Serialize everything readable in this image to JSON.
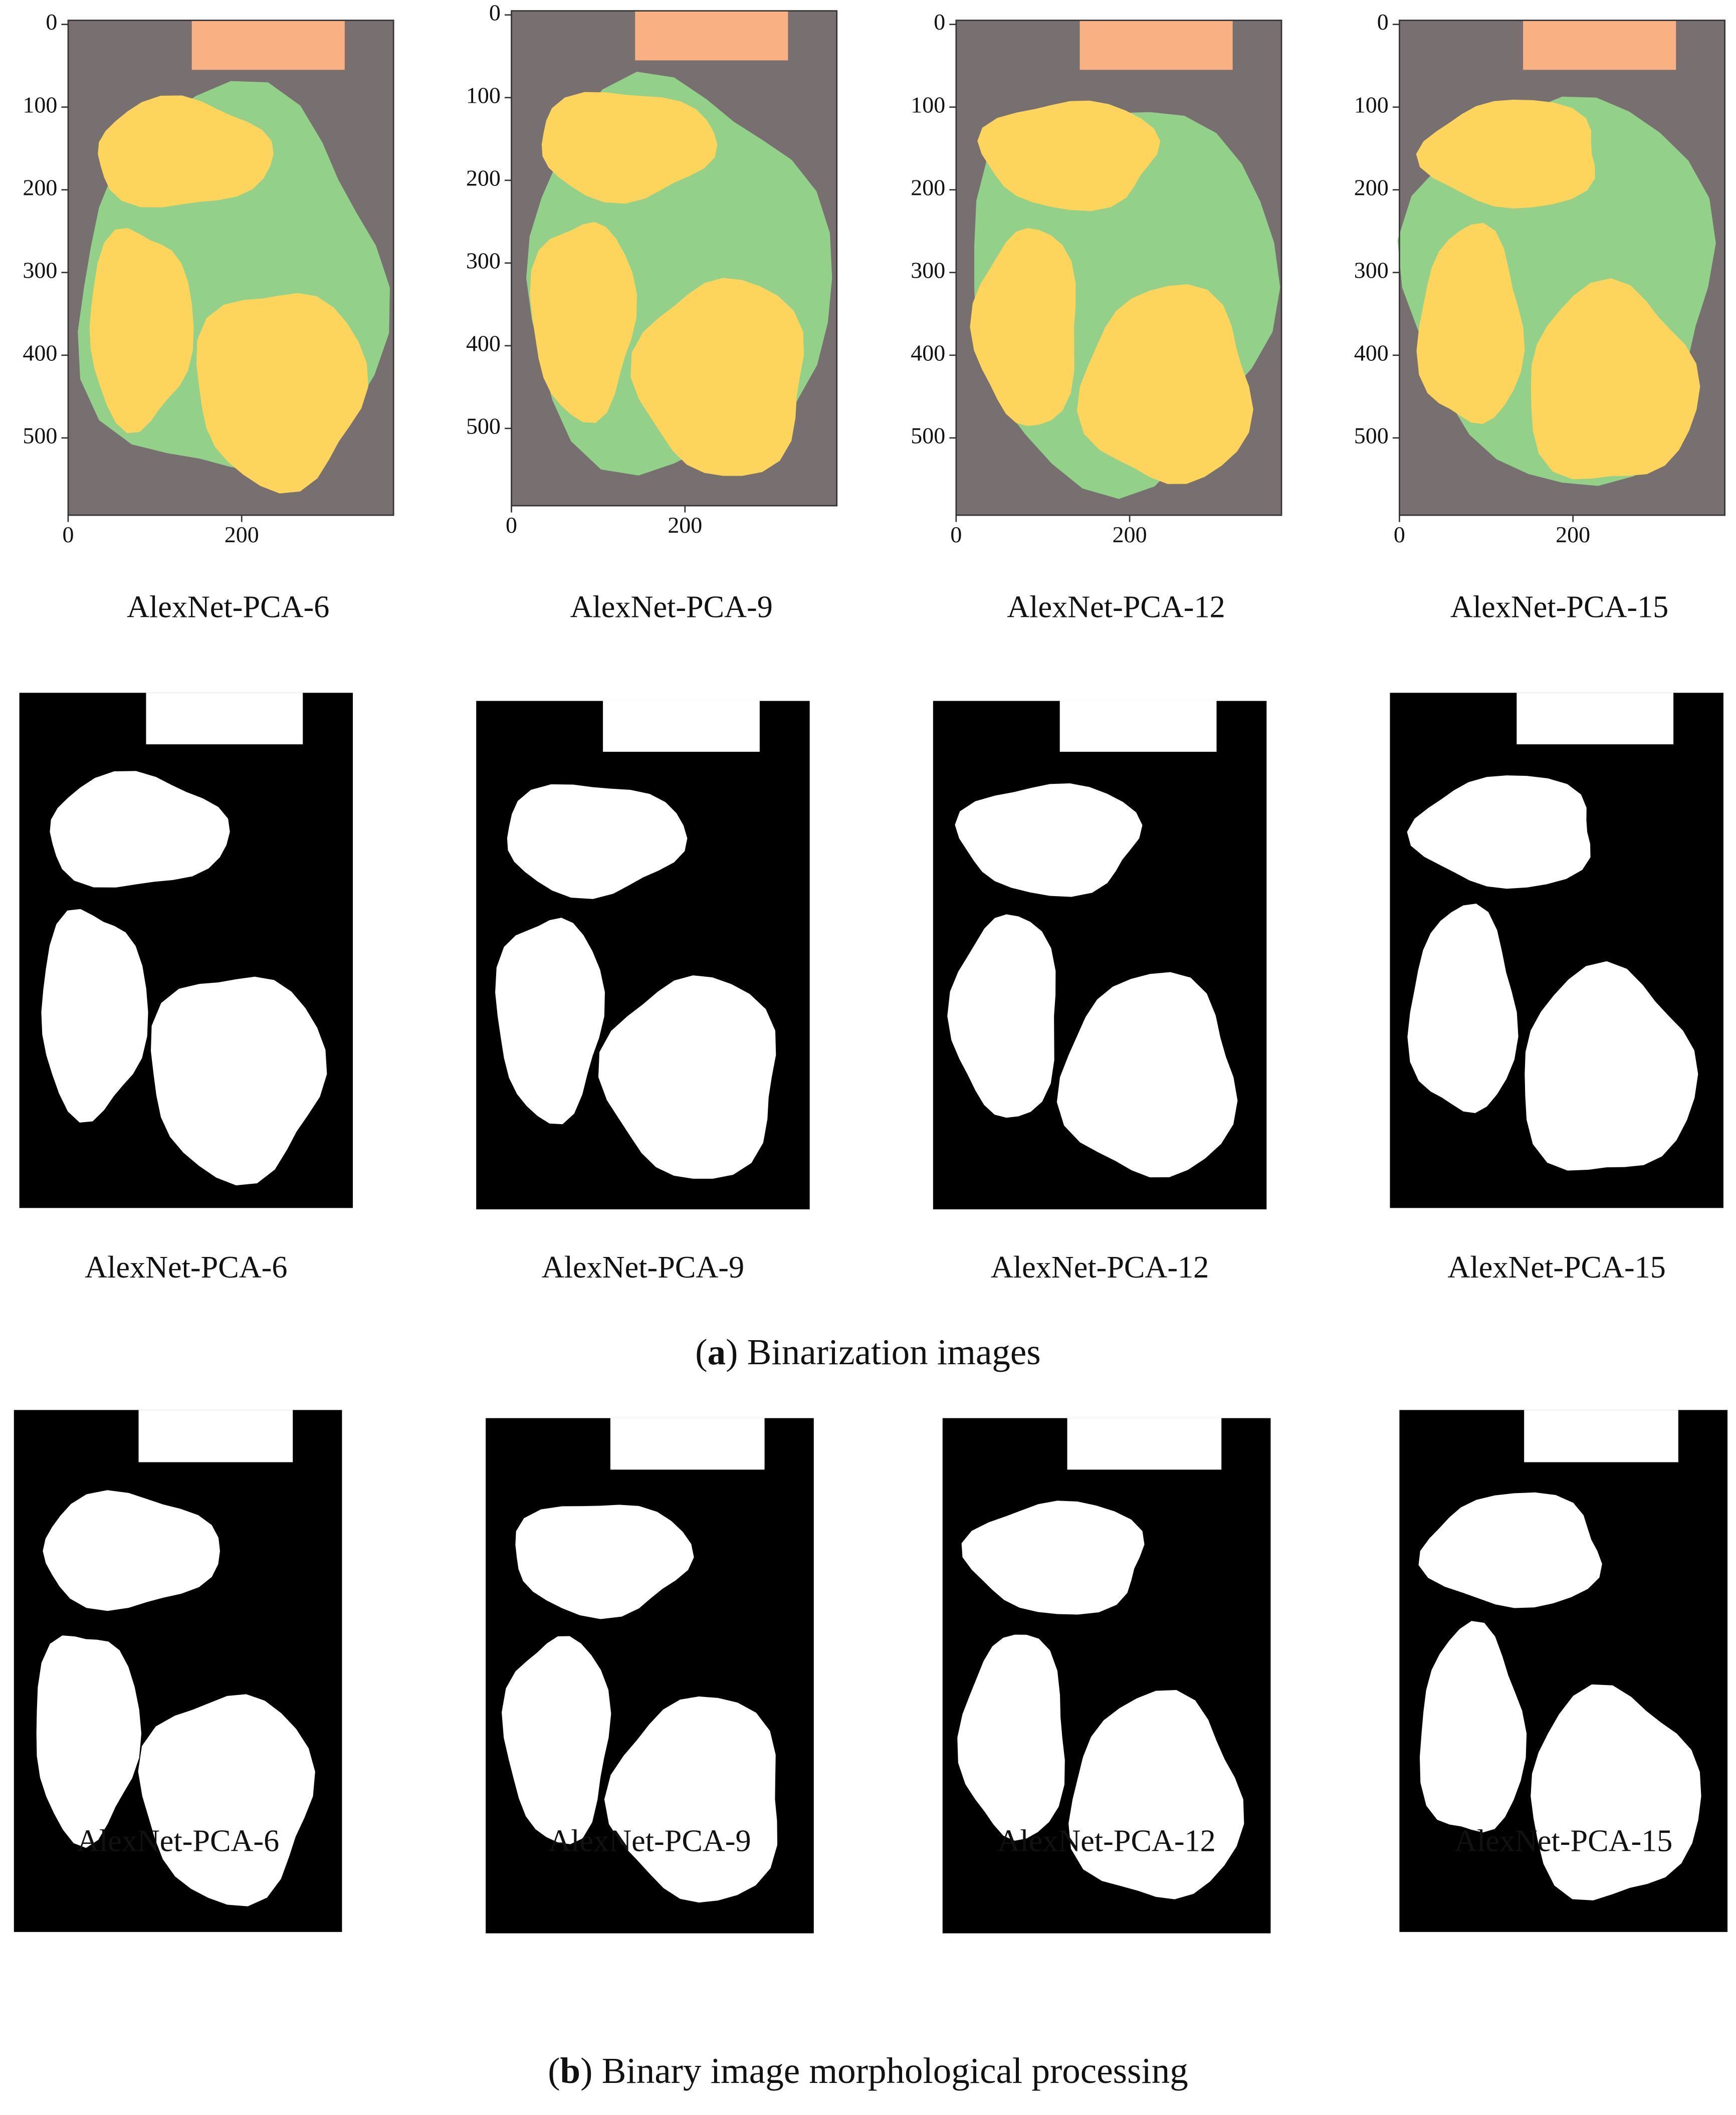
{
  "segmentation_row": {
    "panels": [
      {
        "caption": "AlexNet-PCA-6",
        "yticks": [
          0,
          100,
          200,
          300,
          400,
          500
        ],
        "xticks": [
          0,
          200
        ]
      },
      {
        "caption": "AlexNet-PCA-9",
        "yticks": [
          0,
          100,
          200,
          300,
          400,
          500
        ],
        "xticks": [
          0,
          200
        ]
      },
      {
        "caption": "AlexNet-PCA-12",
        "yticks": [
          0,
          100,
          200,
          300,
          400,
          500
        ],
        "xticks": [
          0,
          200
        ]
      },
      {
        "caption": "AlexNet-PCA-15",
        "yticks": [
          0,
          100,
          200,
          300,
          400,
          500
        ],
        "xticks": [
          0,
          200
        ]
      }
    ]
  },
  "binarization_row": {
    "captions": [
      "AlexNet-PCA-6",
      "AlexNet-PCA-9",
      "AlexNet-PCA-12",
      "AlexNet-PCA-15"
    ]
  },
  "caption_a": {
    "open": "(",
    "label": "a",
    "text": ") Binarization images"
  },
  "morphology_row": {
    "captions": [
      "AlexNet-PCA-6",
      "AlexNet-PCA-9",
      "AlexNet-PCA-12",
      "AlexNet-PCA-15"
    ]
  },
  "caption_b": {
    "open": "(",
    "label": "b",
    "text": ") Binary image morphological processing"
  }
}
